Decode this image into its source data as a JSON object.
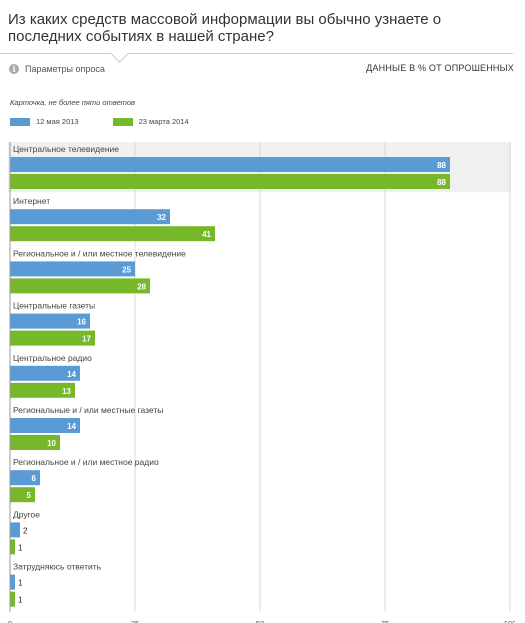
{
  "header": {
    "title": "Из каких средств массовой информации вы обычно узнаете о последних событиях в нашей стране?",
    "params_label": "Параметры опроса",
    "units_label": "ДАННЫЕ В % ОТ ОПРОШЕННЫХ",
    "note": "Карточка, не более пяти ответов"
  },
  "icons": {
    "info": "info-icon"
  },
  "colors": {
    "series1": "#5b9bd5",
    "series2": "#76b82a",
    "grid": "#d9d9d9",
    "band": "#f0f0f0"
  },
  "chart_data": {
    "type": "bar",
    "orientation": "horizontal",
    "categories": [
      "Центральное телевидение",
      "Интернет",
      "Региональное и / или местное телевидение",
      "Центральные газеты",
      "Центральное радио",
      "Региональные и / или местные газеты",
      "Региональное и / или местное радио",
      "Другое",
      "Затрудняюсь ответить"
    ],
    "series": [
      {
        "name": "12 мая 2013",
        "values": [
          88,
          32,
          25,
          16,
          14,
          14,
          6,
          2,
          1
        ]
      },
      {
        "name": "23 марта 2014",
        "values": [
          88,
          41,
          28,
          17,
          13,
          10,
          5,
          1,
          1
        ]
      }
    ],
    "xlim": [
      0,
      100
    ],
    "xticks": [
      0,
      25,
      50,
      75,
      100
    ],
    "grid": true,
    "legend": "top-left"
  }
}
